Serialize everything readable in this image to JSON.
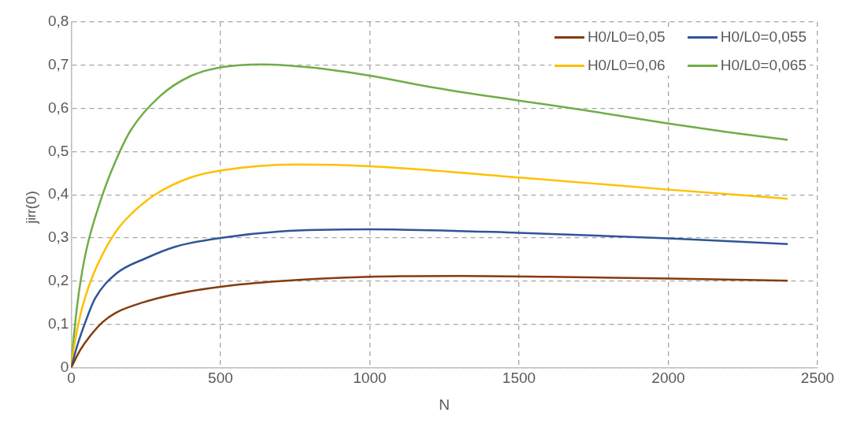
{
  "chart_data": {
    "type": "line",
    "xlabel": "N",
    "ylabel": "j$^{irr}$(0)",
    "xlim": [
      0,
      2500
    ],
    "xticks": [
      0,
      500,
      1000,
      1500,
      2000,
      2500
    ],
    "ylim": [
      0,
      0.8
    ],
    "yticks": [
      0,
      {
        "value": 0.1,
        "label": "0,1"
      },
      {
        "value": 0.2,
        "label": "0,2"
      },
      {
        "value": 0.3,
        "label": "0,3"
      },
      {
        "value": 0.4,
        "label": "0,4"
      },
      {
        "value": 0.5,
        "label": "0,5"
      },
      {
        "value": 0.6,
        "label": "0,6"
      },
      {
        "value": 0.7,
        "label": "0,7"
      },
      {
        "value": 0.8,
        "label": "0,8"
      }
    ],
    "grid": true,
    "legend": "top right",
    "marker": "none",
    "line_style": "solid",
    "series": [
      {
        "name": "H0/L0=0,05",
        "color": "#843c0c",
        "x": [
          0,
          30,
          60,
          105,
          150,
          242,
          350,
          500,
          700,
          1000,
          1300,
          1600,
          2000,
          2400
        ],
        "values": [
          0,
          0.04,
          0.07,
          0.105,
          0.127,
          0.151,
          0.17,
          0.187,
          0.2,
          0.21,
          0.212,
          0.21,
          0.206,
          0.201
        ]
      },
      {
        "name": "H0/L0=0,055",
        "color": "#2f5597",
        "x": [
          0,
          20,
          50,
          80,
          150,
          250,
          350,
          500,
          700,
          1000,
          1500,
          2000,
          2400
        ],
        "values": [
          0,
          0.05,
          0.11,
          0.16,
          0.217,
          0.253,
          0.28,
          0.3,
          0.315,
          0.32,
          0.312,
          0.299,
          0.286
        ]
      },
      {
        "name": "H0/L0=0,06",
        "color": "#ffc000",
        "x": [
          0,
          10,
          30,
          60,
          100,
          150,
          200,
          280,
          400,
          500,
          750,
          1000,
          1500,
          2000,
          2400
        ],
        "values": [
          0,
          0.05,
          0.12,
          0.19,
          0.255,
          0.315,
          0.355,
          0.4,
          0.44,
          0.456,
          0.47,
          0.466,
          0.44,
          0.412,
          0.391
        ]
      },
      {
        "name": "H0/L0=0,065",
        "color": "#70ad47",
        "x": [
          0,
          10,
          25,
          50,
          100,
          150,
          200,
          300,
          400,
          500,
          640,
          800,
          1000,
          1200,
          1500,
          1700,
          2000,
          2200,
          2400
        ],
        "values": [
          0,
          0.08,
          0.17,
          0.27,
          0.39,
          0.48,
          0.55,
          0.63,
          0.675,
          0.695,
          0.702,
          0.695,
          0.676,
          0.65,
          0.618,
          0.598,
          0.565,
          0.545,
          0.527
        ]
      }
    ]
  }
}
